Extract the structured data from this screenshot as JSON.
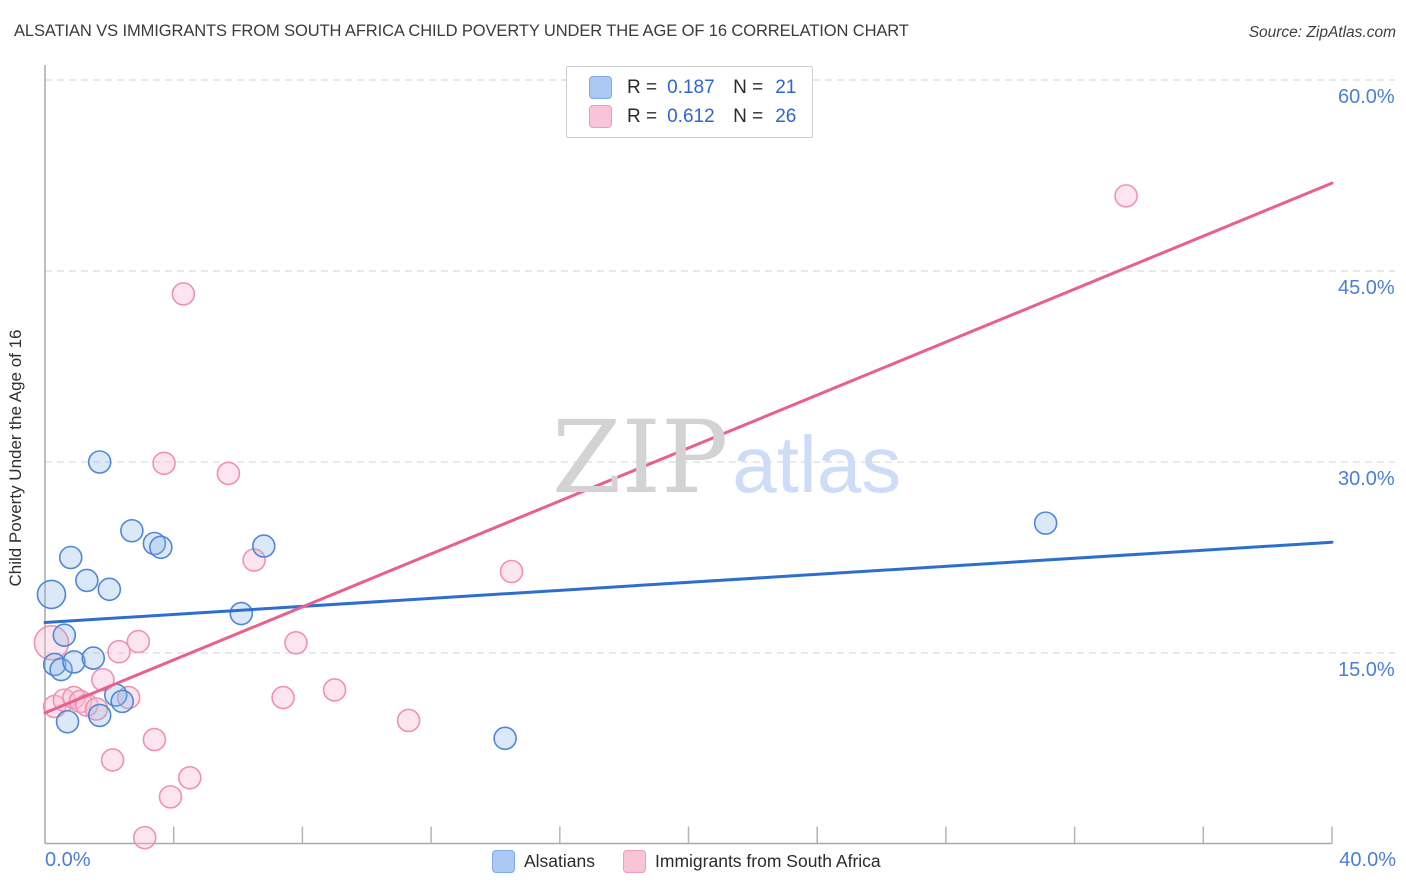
{
  "header": {
    "title": "ALSATIAN VS IMMIGRANTS FROM SOUTH AFRICA CHILD POVERTY UNDER THE AGE OF 16 CORRELATION CHART",
    "source": "Source: ZipAtlas.com"
  },
  "stats_legend": {
    "rows": [
      {
        "series": "alsatians",
        "r_label": "R =",
        "r_value": "0.187",
        "n_label": "N =",
        "n_value": "21"
      },
      {
        "series": "immigrants-from-south-africa",
        "r_label": "R =",
        "r_value": "0.612",
        "n_label": "N =",
        "n_value": "26"
      }
    ]
  },
  "watermark": {
    "zip": "ZIP",
    "atlas": "atlas"
  },
  "y_axis": {
    "label": "Child Poverty Under the Age of 16",
    "ticks": [
      {
        "value": 60,
        "label": "60.0%"
      },
      {
        "value": 45,
        "label": "45.0%"
      },
      {
        "value": 30,
        "label": "30.0%"
      },
      {
        "value": 15,
        "label": "15.0%"
      }
    ]
  },
  "x_axis": {
    "left_label": "0.0%",
    "right_label": "40.0%",
    "tick_values_pct": [
      4,
      8,
      12,
      16,
      20,
      24,
      28,
      32,
      36,
      40
    ]
  },
  "bottom_legend": [
    {
      "label": "Alsatians",
      "series": "alsatians"
    },
    {
      "label": "Immigrants from South Africa",
      "series": "immigrants-from-south-africa"
    }
  ],
  "colors": {
    "blue_stroke": "#4f87d7",
    "blue_fill": "rgba(137,178,233,0.30)",
    "pink_stroke": "#f190b2",
    "pink_fill": "rgba(248,186,209,0.38)",
    "blue_trend": "#2e6fce",
    "pink_trend": "#e9608c",
    "grid": "#dcdcdc",
    "axis": "#a8a8a8",
    "tick": "#b5b5b5",
    "tick_label": "#4b7fd6"
  },
  "chart_data": {
    "type": "scatter",
    "title": "Alsatian vs Immigrants from South Africa Child Poverty Under the Age of 16",
    "xlabel": "",
    "ylabel": "Child Poverty Under the Age of 16",
    "xlim": [
      0,
      40
    ],
    "ylim": [
      0,
      61.2
    ],
    "x_unit": "%",
    "y_unit": "%",
    "grid": true,
    "y_gridlines": [
      60,
      45,
      30,
      15
    ],
    "series": [
      {
        "name": "Immigrants from South Africa",
        "id": "immigrants-from-south-africa",
        "r": 0.612,
        "n": 26,
        "points": [
          [
            4.3,
            43.2
          ],
          [
            3.7,
            29.9
          ],
          [
            5.7,
            29.1
          ],
          [
            6.5,
            22.3
          ],
          [
            33.6,
            50.9
          ],
          [
            14.5,
            21.4
          ],
          [
            0.2,
            15.8,
            17
          ],
          [
            2.9,
            15.9
          ],
          [
            2.3,
            15.1
          ],
          [
            7.8,
            15.8
          ],
          [
            1.8,
            12.9
          ],
          [
            9.0,
            12.1
          ],
          [
            7.4,
            11.5
          ],
          [
            2.6,
            11.5
          ],
          [
            0.3,
            10.8
          ],
          [
            0.6,
            11.3
          ],
          [
            0.9,
            11.5
          ],
          [
            1.1,
            11.2
          ],
          [
            1.3,
            10.9
          ],
          [
            1.6,
            10.6
          ],
          [
            11.3,
            9.7
          ],
          [
            2.1,
            6.6
          ],
          [
            3.4,
            8.2
          ],
          [
            4.5,
            5.2
          ],
          [
            3.9,
            3.7
          ],
          [
            3.1,
            0.5
          ]
        ],
        "trend": {
          "x1": 0,
          "y1": 10.3,
          "x2": 40,
          "y2": 51.9
        }
      },
      {
        "name": "Alsatians",
        "id": "alsatians",
        "r": 0.187,
        "n": 21,
        "points": [
          [
            1.7,
            30.0
          ],
          [
            2.7,
            24.6
          ],
          [
            3.4,
            23.6
          ],
          [
            3.6,
            23.3
          ],
          [
            6.8,
            23.4
          ],
          [
            6.1,
            18.1
          ],
          [
            0.8,
            22.5
          ],
          [
            1.3,
            20.7
          ],
          [
            2.0,
            20.0
          ],
          [
            0.2,
            19.6,
            14
          ],
          [
            0.6,
            16.4
          ],
          [
            0.3,
            14.1
          ],
          [
            0.5,
            13.7
          ],
          [
            0.9,
            14.3
          ],
          [
            1.5,
            14.6
          ],
          [
            2.2,
            11.7
          ],
          [
            2.4,
            11.2
          ],
          [
            0.7,
            9.6
          ],
          [
            1.7,
            10.1
          ],
          [
            14.3,
            8.3
          ],
          [
            31.1,
            25.2
          ]
        ],
        "trend": {
          "x1": 0,
          "y1": 17.4,
          "x2": 40,
          "y2": 23.7
        }
      }
    ],
    "legend_position": "bottom"
  }
}
